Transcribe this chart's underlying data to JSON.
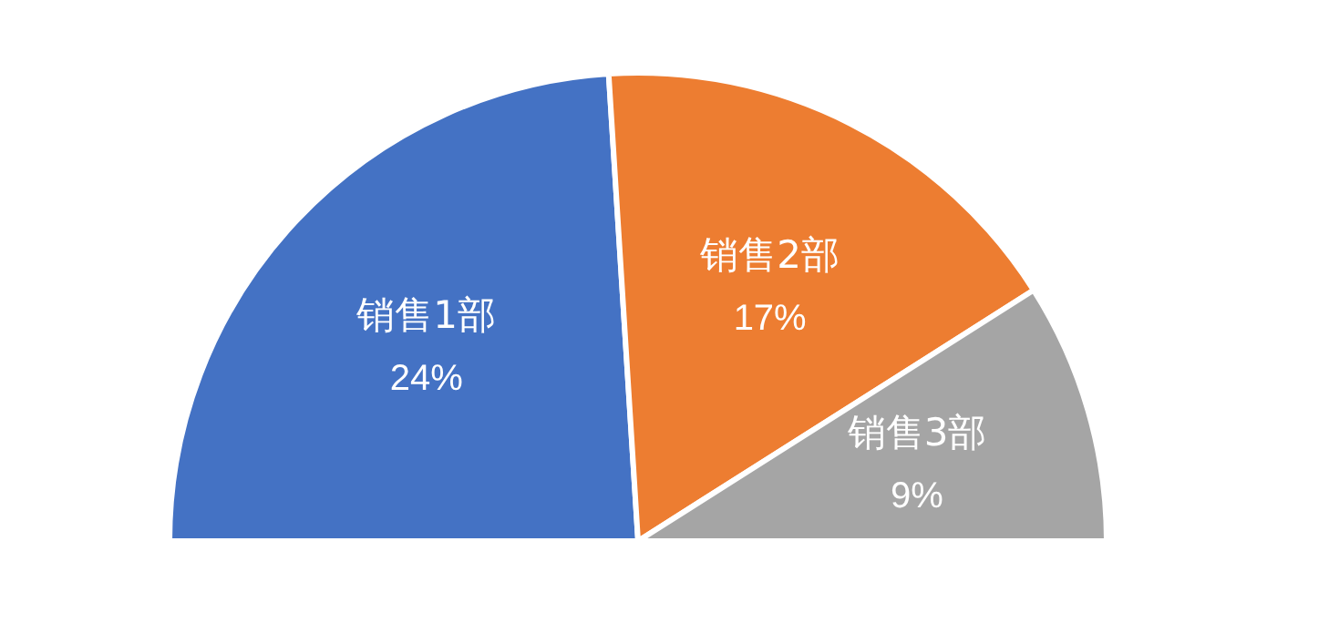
{
  "chart_data": {
    "type": "pie",
    "categories": [
      "销售1部",
      "销售2部",
      "销售3部"
    ],
    "values": [
      24,
      17,
      9
    ],
    "colors": [
      "#4472c4",
      "#ed7d31",
      "#a5a5a5"
    ],
    "value_labels": [
      "24%",
      "17%",
      "9%"
    ]
  }
}
